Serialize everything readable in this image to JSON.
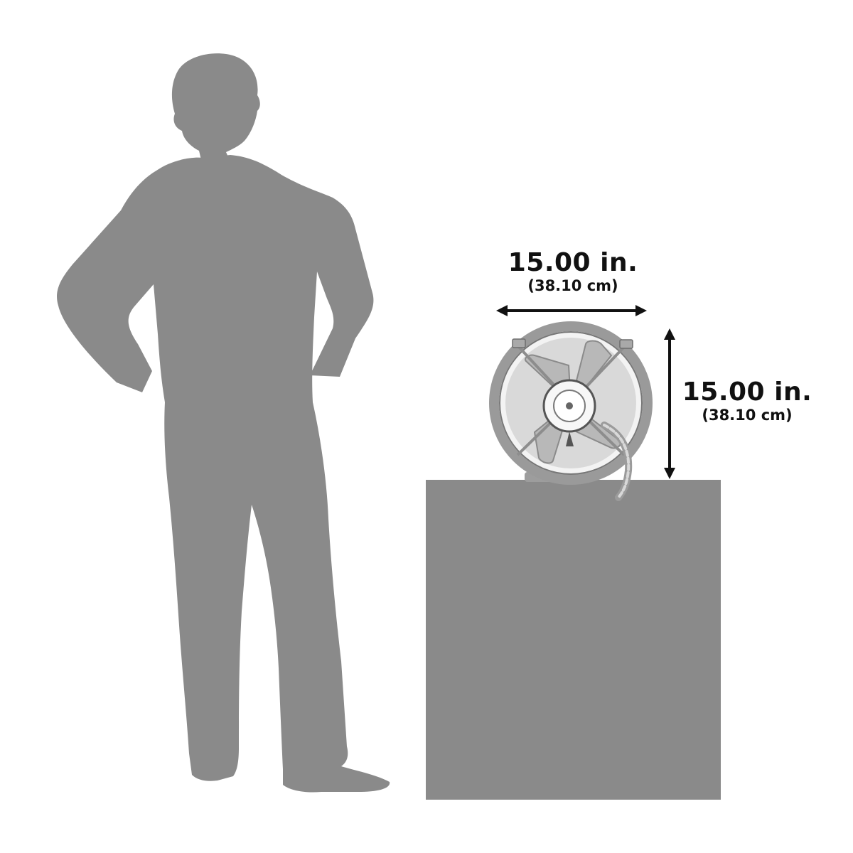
{
  "colors": {
    "background": "#ffffff",
    "silhouette": "#8a8a8a",
    "pedestal": "#8a8a8a",
    "fan_metal": "#b9b9b9",
    "fan_dark": "#6f6f6f",
    "arrow": "#111111",
    "text": "#111111"
  },
  "dimensions": {
    "width": {
      "primary": "15.00 in.",
      "secondary": "(38.10 cm)"
    },
    "height": {
      "primary": "15.00 in.",
      "secondary": "(38.10 cm)"
    }
  },
  "icons": {
    "person": "person-silhouette-icon",
    "fan": "gable-attic-fan-icon",
    "pedestal": "pedestal-block"
  }
}
